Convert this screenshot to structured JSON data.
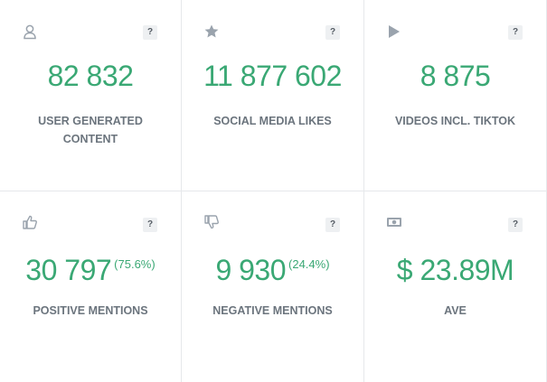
{
  "help_symbol": "?",
  "cards": [
    {
      "value": "82 832",
      "pct": "",
      "label": "USER GENERATED CONTENT",
      "icon": "user-icon"
    },
    {
      "value": "11 877 602",
      "pct": "",
      "label": "SOCIAL MEDIA LIKES",
      "icon": "star-icon"
    },
    {
      "value": "8 875",
      "pct": "",
      "label": "VIDEOS INCL. TIKTOK",
      "icon": "play-icon"
    },
    {
      "value": "30 797",
      "pct": "(75.6%)",
      "label": "POSITIVE MENTIONS",
      "icon": "thumbs-up-icon"
    },
    {
      "value": "9 930",
      "pct": "(24.4%)",
      "label": "NEGATIVE MENTIONS",
      "icon": "thumbs-down-icon"
    },
    {
      "value": "$ 23.89M",
      "pct": "",
      "label": "AVE",
      "icon": "money-icon"
    }
  ],
  "colors": {
    "value_green": "#3aa874",
    "label_gray": "#6b747d",
    "icon_gray": "#9aa3ad",
    "divider": "#e6e8eb"
  }
}
